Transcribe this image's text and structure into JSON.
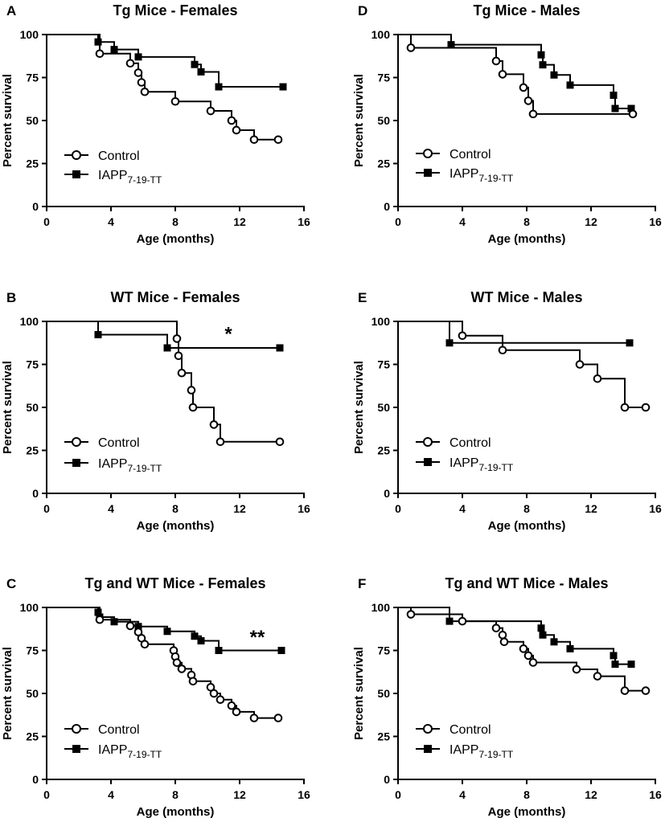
{
  "figure": {
    "axis": {
      "xlabel": "Age (months)",
      "ylabel": "Percent survival",
      "xticks": [
        "0",
        "4",
        "8",
        "12",
        "16"
      ],
      "yticks": [
        "0",
        "25",
        "50",
        "75",
        "100"
      ]
    },
    "legend": {
      "control": "Control",
      "treated_main": "IAPP",
      "treated_sub": "7-19-TT"
    }
  },
  "chart_data": [
    {
      "panel": "A",
      "type": "line",
      "title": "Tg Mice - Females",
      "xlabel": "Age (months)",
      "ylabel": "Percent survival",
      "xlim": [
        0,
        16
      ],
      "ylim": [
        0,
        100
      ],
      "annotation": "",
      "series": [
        {
          "name": "Control",
          "marker": "open-circle",
          "steps": [
            [
              0,
              100
            ],
            [
              3.3,
              88.9
            ],
            [
              5.2,
              83.3
            ],
            [
              5.7,
              77.8
            ],
            [
              5.9,
              72.2
            ],
            [
              6.1,
              66.7
            ],
            [
              8,
              61.1
            ],
            [
              10.2,
              55.6
            ],
            [
              11.5,
              50
            ],
            [
              11.8,
              44.4
            ],
            [
              12.9,
              38.9
            ]
          ],
          "end_x": 14.4,
          "markers": [
            [
              3.3,
              88.9
            ],
            [
              5.2,
              83.3
            ],
            [
              5.7,
              77.8
            ],
            [
              5.9,
              72.2
            ],
            [
              6.1,
              66.7
            ],
            [
              8,
              61.1
            ],
            [
              10.2,
              55.6
            ],
            [
              11.5,
              50
            ],
            [
              11.8,
              44.4
            ],
            [
              12.9,
              38.9
            ],
            [
              14.4,
              38.9
            ]
          ]
        },
        {
          "name": "IAPP7-19-TT",
          "marker": "filled-square",
          "steps": [
            [
              0,
              100
            ],
            [
              3.2,
              95.7
            ],
            [
              4.2,
              91.3
            ],
            [
              5.7,
              87
            ],
            [
              9.2,
              82.6
            ],
            [
              9.6,
              78.3
            ],
            [
              10.7,
              69.6
            ]
          ],
          "end_x": 14.7,
          "markers": [
            [
              3.2,
              95.7
            ],
            [
              4.2,
              91.3
            ],
            [
              5.7,
              87
            ],
            [
              9.2,
              82.6
            ],
            [
              9.6,
              78.3
            ],
            [
              10.7,
              69.6
            ],
            [
              14.7,
              69.6
            ]
          ]
        }
      ]
    },
    {
      "panel": "B",
      "type": "line",
      "title": "WT Mice - Females",
      "xlabel": "Age (months)",
      "ylabel": "Percent survival",
      "xlim": [
        0,
        16
      ],
      "ylim": [
        0,
        100
      ],
      "annotation": "*",
      "annotation_pos": [
        11.3,
        89
      ],
      "series": [
        {
          "name": "Control",
          "marker": "open-circle",
          "steps": [
            [
              0,
              100
            ],
            [
              8.1,
              90
            ],
            [
              8.2,
              80
            ],
            [
              8.4,
              70
            ],
            [
              9,
              60
            ],
            [
              9.1,
              50
            ],
            [
              10.4,
              40
            ],
            [
              10.8,
              30
            ]
          ],
          "end_x": 14.5,
          "markers": [
            [
              8.1,
              90
            ],
            [
              8.2,
              80
            ],
            [
              8.4,
              70
            ],
            [
              9,
              60
            ],
            [
              9.1,
              50
            ],
            [
              10.4,
              40
            ],
            [
              10.8,
              30
            ],
            [
              14.5,
              30
            ]
          ]
        },
        {
          "name": "IAPP7-19-TT",
          "marker": "filled-square",
          "steps": [
            [
              0,
              100
            ],
            [
              3.2,
              92.3
            ],
            [
              7.5,
              84.6
            ]
          ],
          "end_x": 14.5,
          "markers": [
            [
              3.2,
              92.3
            ],
            [
              7.5,
              84.6
            ],
            [
              14.5,
              84.6
            ]
          ]
        }
      ]
    },
    {
      "panel": "C",
      "type": "line",
      "title": "Tg and WT Mice - Females",
      "xlabel": "Age (months)",
      "ylabel": "Percent survival",
      "xlim": [
        0,
        16
      ],
      "ylim": [
        0,
        100
      ],
      "annotation": "**",
      "annotation_pos": [
        13.1,
        79
      ],
      "series": [
        {
          "name": "Control",
          "marker": "open-circle",
          "steps": [
            [
              0,
              100
            ],
            [
              3.3,
              92.9
            ],
            [
              5.2,
              89.3
            ],
            [
              5.7,
              85.7
            ],
            [
              5.9,
              82.1
            ],
            [
              6.1,
              78.6
            ],
            [
              7.9,
              75
            ],
            [
              8,
              71.4
            ],
            [
              8.1,
              67.9
            ],
            [
              8.4,
              64.3
            ],
            [
              9,
              60.7
            ],
            [
              9.1,
              57.1
            ],
            [
              10.2,
              53.6
            ],
            [
              10.4,
              50
            ],
            [
              10.8,
              46.4
            ],
            [
              11.5,
              42.9
            ],
            [
              11.8,
              39.3
            ],
            [
              12.9,
              35.7
            ]
          ],
          "end_x": 14.4,
          "markers": [
            [
              3.3,
              92.9
            ],
            [
              5.2,
              89.3
            ],
            [
              5.7,
              85.7
            ],
            [
              5.9,
              82.1
            ],
            [
              6.1,
              78.6
            ],
            [
              7.9,
              75
            ],
            [
              8,
              71.4
            ],
            [
              8.1,
              67.9
            ],
            [
              8.4,
              64.3
            ],
            [
              9,
              60.7
            ],
            [
              9.1,
              57.1
            ],
            [
              10.2,
              53.6
            ],
            [
              10.4,
              50
            ],
            [
              10.8,
              46.4
            ],
            [
              11.5,
              42.9
            ],
            [
              11.8,
              39.3
            ],
            [
              12.9,
              35.7
            ],
            [
              14.4,
              35.7
            ]
          ]
        },
        {
          "name": "IAPP7-19-TT",
          "marker": "filled-square",
          "steps": [
            [
              0,
              100
            ],
            [
              3.2,
              97.2
            ],
            [
              3.3,
              94.4
            ],
            [
              4.2,
              91.7
            ],
            [
              5.7,
              88.9
            ],
            [
              7.5,
              86.1
            ],
            [
              9.2,
              83.3
            ],
            [
              9.6,
              80.6
            ],
            [
              10.7,
              75
            ]
          ],
          "end_x": 14.6,
          "markers": [
            [
              3.2,
              97.2
            ],
            [
              3.3,
              94.4
            ],
            [
              4.2,
              91.7
            ],
            [
              5.7,
              88.9
            ],
            [
              7.5,
              86.1
            ],
            [
              9.2,
              83.3
            ],
            [
              9.6,
              80.6
            ],
            [
              10.7,
              75
            ],
            [
              14.6,
              75
            ]
          ]
        }
      ]
    },
    {
      "panel": "D",
      "type": "line",
      "title": "Tg Mice - Males",
      "xlabel": "Age (months)",
      "ylabel": "Percent survival",
      "xlim": [
        0,
        16
      ],
      "ylim": [
        0,
        100
      ],
      "annotation": "",
      "series": [
        {
          "name": "Control",
          "marker": "open-circle",
          "steps": [
            [
              0,
              100
            ],
            [
              0.8,
              92.3
            ],
            [
              6.1,
              84.6
            ],
            [
              6.5,
              76.9
            ],
            [
              7.8,
              69.2
            ],
            [
              8.1,
              61.5
            ],
            [
              8.4,
              53.8
            ]
          ],
          "end_x": 14.6,
          "markers": [
            [
              0.8,
              92.3
            ],
            [
              6.1,
              84.6
            ],
            [
              6.5,
              76.9
            ],
            [
              7.8,
              69.2
            ],
            [
              8.1,
              61.5
            ],
            [
              8.4,
              53.8
            ],
            [
              14.6,
              53.8
            ]
          ]
        },
        {
          "name": "IAPP7-19-TT",
          "marker": "filled-square",
          "steps": [
            [
              0,
              100
            ],
            [
              3.3,
              94.1
            ],
            [
              8.9,
              88.2
            ],
            [
              9,
              82.4
            ],
            [
              9.7,
              76.5
            ],
            [
              10.7,
              70.6
            ],
            [
              13.4,
              64.7
            ],
            [
              13.5,
              57
            ]
          ],
          "end_x": 14.5,
          "markers": [
            [
              3.3,
              94.1
            ],
            [
              8.9,
              88.2
            ],
            [
              9,
              82.4
            ],
            [
              9.7,
              76.5
            ],
            [
              10.7,
              70.6
            ],
            [
              13.4,
              64.7
            ],
            [
              13.5,
              57
            ],
            [
              14.5,
              57
            ]
          ]
        }
      ]
    },
    {
      "panel": "E",
      "type": "line",
      "title": "WT Mice - Males",
      "xlabel": "Age (months)",
      "ylabel": "Percent survival",
      "xlim": [
        0,
        16
      ],
      "ylim": [
        0,
        100
      ],
      "annotation": "",
      "series": [
        {
          "name": "Control",
          "marker": "open-circle",
          "steps": [
            [
              0,
              100
            ],
            [
              4,
              91.7
            ],
            [
              6.5,
              83.3
            ],
            [
              11.3,
              75
            ],
            [
              12.4,
              66.7
            ],
            [
              14.1,
              50
            ]
          ],
          "end_x": 15.4,
          "markers": [
            [
              4,
              91.7
            ],
            [
              6.5,
              83.3
            ],
            [
              11.3,
              75
            ],
            [
              12.4,
              66.7
            ],
            [
              14.1,
              50
            ],
            [
              15.4,
              50
            ]
          ]
        },
        {
          "name": "IAPP7-19-TT",
          "marker": "filled-square",
          "steps": [
            [
              0,
              100
            ],
            [
              3.2,
              87.5
            ]
          ],
          "end_x": 14.4,
          "markers": [
            [
              3.2,
              87.5
            ],
            [
              14.4,
              87.5
            ]
          ]
        }
      ]
    },
    {
      "panel": "F",
      "type": "line",
      "title": "Tg and WT Mice - Males",
      "xlabel": "Age (months)",
      "ylabel": "Percent survival",
      "xlim": [
        0,
        16
      ],
      "ylim": [
        0,
        100
      ],
      "annotation": "",
      "series": [
        {
          "name": "Control",
          "marker": "open-circle",
          "steps": [
            [
              0,
              100
            ],
            [
              0.8,
              96
            ],
            [
              4,
              92
            ],
            [
              6.1,
              88
            ],
            [
              6.5,
              84
            ],
            [
              6.6,
              80
            ],
            [
              7.8,
              76
            ],
            [
              8.1,
              72
            ],
            [
              8.4,
              68
            ],
            [
              11.1,
              64
            ],
            [
              12.4,
              60
            ],
            [
              14.1,
              51.6
            ]
          ],
          "end_x": 15.4,
          "markers": [
            [
              0.8,
              96
            ],
            [
              4,
              92
            ],
            [
              6.1,
              88
            ],
            [
              6.5,
              84
            ],
            [
              6.6,
              80
            ],
            [
              7.8,
              76
            ],
            [
              8.1,
              72
            ],
            [
              8.4,
              68
            ],
            [
              11.1,
              64
            ],
            [
              12.4,
              60
            ],
            [
              14.1,
              51.6
            ],
            [
              15.4,
              51.6
            ]
          ]
        },
        {
          "name": "IAPP7-19-TT",
          "marker": "filled-square",
          "steps": [
            [
              0,
              100
            ],
            [
              3.2,
              92
            ],
            [
              8.9,
              88
            ],
            [
              9,
              84
            ],
            [
              9.7,
              80
            ],
            [
              10.7,
              76
            ],
            [
              13.4,
              72
            ],
            [
              13.5,
              67
            ]
          ],
          "end_x": 14.5,
          "markers": [
            [
              3.2,
              92
            ],
            [
              8.9,
              88
            ],
            [
              9,
              84
            ],
            [
              9.7,
              80
            ],
            [
              10.7,
              76
            ],
            [
              13.4,
              72
            ],
            [
              13.5,
              67
            ],
            [
              14.5,
              67
            ]
          ]
        }
      ]
    }
  ]
}
